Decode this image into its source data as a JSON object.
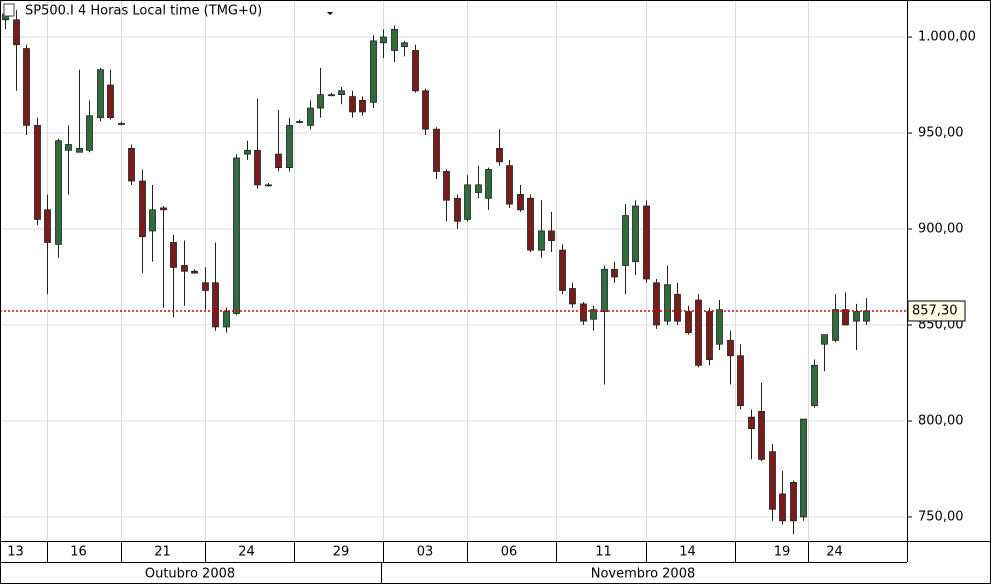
{
  "chart_data": {
    "type": "candlestick",
    "title": "SP500.I 4 Horas Local time (TMG+0)",
    "up_color": "#2f6b3b",
    "down_color": "#7b1c1c",
    "grid": true,
    "ylim": [
      738,
      1019.3
    ],
    "yticks": [
      {
        "value": 750,
        "label": "750,00"
      },
      {
        "value": 800,
        "label": "800,00"
      },
      {
        "value": 850,
        "label": "850,00"
      },
      {
        "value": 900,
        "label": "900,00"
      },
      {
        "value": 950,
        "label": "950,00"
      },
      {
        "value": 1000,
        "label": "1.000,00"
      }
    ],
    "last_price": {
      "value": 857.3,
      "label": "857,30",
      "color": "#d00000"
    },
    "month_labels": [
      "Outubro 2008",
      "Novembro 2008"
    ],
    "categories": [
      null,
      "13",
      null,
      null,
      null,
      null,
      null,
      "16",
      null,
      null,
      null,
      null,
      null,
      null,
      null,
      "21",
      null,
      null,
      null,
      null,
      null,
      null,
      null,
      "24",
      null,
      null,
      null,
      null,
      null,
      null,
      null,
      null,
      "29",
      null,
      null,
      null,
      null,
      null,
      null,
      null,
      "03",
      null,
      null,
      null,
      null,
      null,
      null,
      null,
      "06",
      null,
      null,
      null,
      null,
      null,
      null,
      null,
      null,
      "11",
      null,
      null,
      null,
      null,
      null,
      null,
      null,
      "14",
      null,
      null,
      null,
      null,
      null,
      null,
      null,
      null,
      "19",
      null,
      null,
      null,
      null,
      "24",
      null,
      null,
      null
    ],
    "ohlc": [
      [
        1009,
        1017,
        1004,
        1012
      ],
      [
        1009,
        1014,
        972,
        996
      ],
      [
        994,
        996,
        949,
        954
      ],
      [
        954,
        958,
        902,
        905
      ],
      [
        910,
        918,
        866,
        893
      ],
      [
        892,
        947,
        885,
        946
      ],
      [
        941,
        954,
        918,
        944
      ],
      [
        940,
        983,
        940,
        942
      ],
      [
        941,
        967,
        940,
        959
      ],
      [
        958,
        984,
        956,
        983
      ],
      [
        975,
        983,
        957,
        958
      ],
      [
        955,
        956,
        954,
        955
      ],
      [
        942,
        944,
        923,
        925
      ],
      [
        925,
        931,
        877,
        896
      ],
      [
        899,
        923,
        883,
        910
      ],
      [
        911,
        912,
        859,
        910
      ],
      [
        893,
        897,
        854,
        880
      ],
      [
        881,
        894,
        860,
        878
      ],
      [
        878,
        879,
        877,
        877
      ],
      [
        872,
        880,
        858,
        868
      ],
      [
        872,
        893,
        847,
        849
      ],
      [
        849,
        859,
        846,
        857
      ],
      [
        856,
        939,
        855,
        937
      ],
      [
        939,
        946,
        936,
        941
      ],
      [
        941,
        968,
        921,
        923
      ],
      [
        923,
        924,
        922,
        923
      ],
      [
        939,
        962,
        930,
        932
      ],
      [
        932,
        958,
        930,
        954
      ],
      [
        956,
        957,
        955,
        956
      ],
      [
        954,
        967,
        952,
        963
      ],
      [
        963,
        984,
        958,
        970
      ],
      [
        970,
        971,
        969,
        970
      ],
      [
        970,
        974,
        965,
        972
      ],
      [
        969,
        972,
        958,
        961
      ],
      [
        967,
        969,
        959,
        961
      ],
      [
        966,
        1001,
        963,
        998
      ],
      [
        997,
        1004,
        989,
        1000
      ],
      [
        993,
        1006,
        987,
        1004
      ],
      [
        995,
        998,
        990,
        997
      ],
      [
        993,
        996,
        971,
        972
      ],
      [
        972,
        973,
        949,
        952
      ],
      [
        952,
        953,
        926,
        930
      ],
      [
        930,
        931,
        904,
        915
      ],
      [
        916,
        918,
        900,
        904
      ],
      [
        905,
        928,
        904,
        923
      ],
      [
        919,
        933,
        916,
        923
      ],
      [
        916,
        932,
        910,
        931
      ],
      [
        942,
        952,
        933,
        935
      ],
      [
        933,
        936,
        911,
        913
      ],
      [
        918,
        923,
        909,
        910
      ],
      [
        916,
        918,
        888,
        889
      ],
      [
        889,
        915,
        885,
        899
      ],
      [
        899,
        909,
        888,
        894
      ],
      [
        889,
        892,
        866,
        868
      ],
      [
        869,
        872,
        859,
        861
      ],
      [
        861,
        862,
        850,
        852
      ],
      [
        853,
        860,
        847,
        858
      ],
      [
        857,
        881,
        819,
        879
      ],
      [
        879,
        883,
        872,
        875
      ],
      [
        881,
        913,
        866,
        907
      ],
      [
        883,
        915,
        876,
        912
      ],
      [
        912,
        915,
        872,
        874
      ],
      [
        872,
        874,
        848,
        850
      ],
      [
        852,
        881,
        850,
        871
      ],
      [
        866,
        872,
        850,
        852
      ],
      [
        857,
        860,
        845,
        846
      ],
      [
        863,
        866,
        828,
        829
      ],
      [
        857,
        859,
        829,
        832
      ],
      [
        840,
        863,
        837,
        858
      ],
      [
        842,
        847,
        819,
        834
      ],
      [
        834,
        840,
        806,
        808
      ],
      [
        802,
        806,
        780,
        796
      ],
      [
        805,
        820,
        779,
        780
      ],
      [
        784,
        788,
        748,
        754
      ],
      [
        762,
        774,
        746,
        748
      ],
      [
        768,
        769,
        741,
        748
      ],
      [
        750,
        801,
        748,
        801
      ],
      [
        808,
        832,
        807,
        829
      ],
      [
        840,
        845,
        826,
        845
      ],
      [
        842,
        866,
        841,
        858
      ],
      [
        858,
        867,
        850,
        850
      ],
      [
        852,
        861,
        837,
        857
      ],
      [
        852,
        864,
        850,
        857.3
      ]
    ]
  }
}
